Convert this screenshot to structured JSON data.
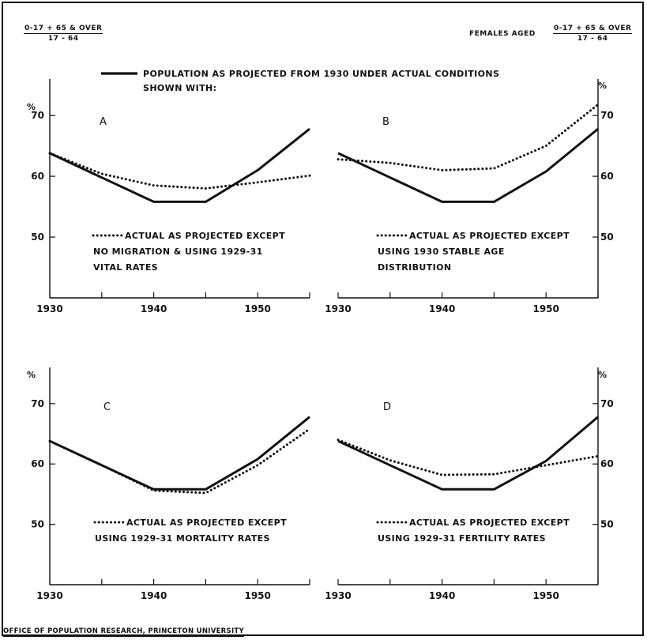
{
  "header": {
    "left_fraction": {
      "numerator": "0-17 + 65 & OVER",
      "denominator": "17 - 64"
    },
    "right_prefix": "FEMALES AGED",
    "right_fraction": {
      "numerator": "0-17 + 65 & OVER",
      "denominator": "17 - 64"
    }
  },
  "legend_main": {
    "line1": "POPULATION AS PROJECTED FROM 1930 UNDER ACTUAL CONDITIONS",
    "line2": "SHOWN WITH:"
  },
  "footer": "OFFICE OF POPULATION RESEARCH, PRINCETON UNIVERSITY",
  "colors": {
    "ink": "#111111",
    "background": "#ffffff"
  },
  "chart_data": [
    {
      "type": "line",
      "panel": "A",
      "x": [
        1930,
        1935,
        1940,
        1945,
        1950,
        1955
      ],
      "xticks": [
        "1930",
        "1940",
        "1950"
      ],
      "yticks": [
        "50",
        "60",
        "70"
      ],
      "unit_label": "%",
      "ylim": [
        40,
        76
      ],
      "xlim": [
        1930,
        1955
      ],
      "series": [
        {
          "style": "solid",
          "values": [
            63.8,
            59.8,
            55.8,
            55.8,
            61.0,
            67.8
          ]
        },
        {
          "style": "dotted",
          "values": [
            63.8,
            60.4,
            58.5,
            58.0,
            59.0,
            60.1
          ]
        }
      ],
      "annotation": [
        "ACTUAL AS PROJECTED EXCEPT",
        "NO MIGRATION & USING 1929-31",
        "VITAL RATES"
      ]
    },
    {
      "type": "line",
      "panel": "B",
      "x": [
        1930,
        1935,
        1940,
        1945,
        1950,
        1955
      ],
      "xticks": [
        "1930",
        "1940",
        "1950"
      ],
      "yticks": [
        "50",
        "60",
        "70"
      ],
      "unit_label": "%",
      "ylim": [
        40,
        76
      ],
      "xlim": [
        1930,
        1955
      ],
      "series": [
        {
          "style": "solid",
          "values": [
            63.8,
            59.8,
            55.8,
            55.8,
            60.8,
            67.8
          ]
        },
        {
          "style": "dotted",
          "values": [
            62.8,
            62.2,
            61.0,
            61.3,
            65.0,
            71.8
          ]
        }
      ],
      "annotation": [
        "ACTUAL AS PROJECTED EXCEPT",
        "USING 1930 STABLE AGE",
        "DISTRIBUTION"
      ]
    },
    {
      "type": "line",
      "panel": "C",
      "x": [
        1930,
        1935,
        1940,
        1945,
        1950,
        1955
      ],
      "xticks": [
        "1930",
        "1940",
        "1950"
      ],
      "yticks": [
        "50",
        "60",
        "70"
      ],
      "unit_label": "%",
      "ylim": [
        40,
        76
      ],
      "xlim": [
        1930,
        1955
      ],
      "series": [
        {
          "style": "solid",
          "values": [
            63.8,
            59.8,
            55.8,
            55.8,
            60.8,
            67.8
          ]
        },
        {
          "style": "dotted",
          "values": [
            63.8,
            59.8,
            55.6,
            55.2,
            59.8,
            65.8
          ]
        }
      ],
      "annotation": [
        "ACTUAL AS PROJECTED EXCEPT",
        "USING 1929-31 MORTALITY RATES"
      ]
    },
    {
      "type": "line",
      "panel": "D",
      "x": [
        1930,
        1935,
        1940,
        1945,
        1950,
        1955
      ],
      "xticks": [
        "1930",
        "1940",
        "1950"
      ],
      "yticks": [
        "50",
        "60",
        "70"
      ],
      "unit_label": "%",
      "ylim": [
        40,
        76
      ],
      "xlim": [
        1930,
        1955
      ],
      "series": [
        {
          "style": "solid",
          "values": [
            63.8,
            59.8,
            55.8,
            55.8,
            60.5,
            67.8
          ]
        },
        {
          "style": "dotted",
          "values": [
            64.0,
            60.6,
            58.2,
            58.3,
            59.8,
            61.3
          ]
        }
      ],
      "annotation": [
        "ACTUAL AS PROJECTED EXCEPT",
        "USING 1929-31 FERTILITY RATES"
      ]
    }
  ]
}
